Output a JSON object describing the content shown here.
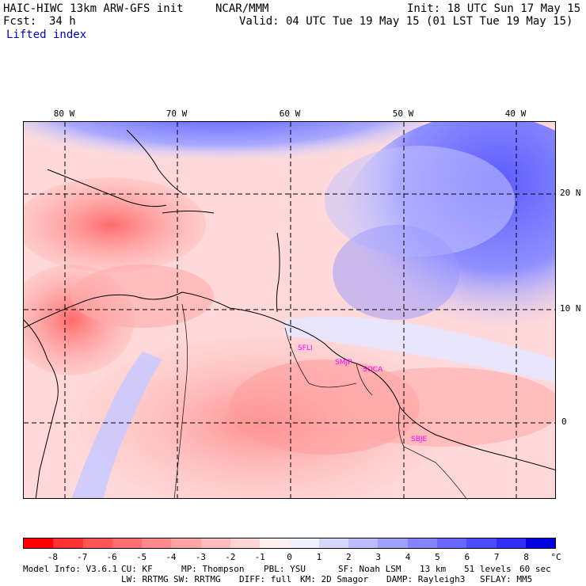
{
  "header": {
    "model": "HAIC-HIWC 13km ARW-GFS init",
    "org": "NCAR/MMM",
    "init": "Init: 18 UTC Sun 17 May 15",
    "fcst_label": "Fcst:",
    "fcst_value": "34 h",
    "valid": "Valid: 04 UTC Tue 19 May 15 (01 LST Tue 19 May 15)",
    "field": "Lifted index"
  },
  "map": {
    "lon_labels": [
      "80 W",
      "70 W",
      "60 W",
      "50 W",
      "40 W"
    ],
    "lat_labels": [
      "20 N",
      "10 N",
      "0"
    ],
    "stations": [
      "SFLI",
      "SMJP",
      "SOCA",
      "SBJE"
    ]
  },
  "colorbar": {
    "unit": "°C",
    "tick_labels": [
      "-8",
      "-7",
      "-6",
      "-5",
      "-4",
      "-3",
      "-2",
      "-1",
      "0",
      "1",
      "2",
      "3",
      "4",
      "5",
      "6",
      "7",
      "8"
    ],
    "colors": [
      "#ff0000",
      "#ff3333",
      "#ff5555",
      "#ff6f6f",
      "#ff8a8a",
      "#ffa4a4",
      "#ffbcbc",
      "#ffd6d6",
      "#fff0f0",
      "#f0f0ff",
      "#d6d6ff",
      "#bcbcff",
      "#a0a0ff",
      "#8484ff",
      "#6868ff",
      "#4c4cff",
      "#2f2ff5",
      "#0000e0"
    ]
  },
  "footer": {
    "line1": {
      "model_info": "Model Info: V3.6.1",
      "cu": "CU: KF",
      "mp": "MP: Thompson",
      "pbl": "PBL: YSU",
      "sf": "SF: Noah LSM",
      "res": "13 km",
      "levels": "51 levels",
      "dt": "60 sec"
    },
    "line2": {
      "lw": "LW: RRTMG",
      "sw": "SW: RRTMG",
      "diff": "DIFF: full",
      "km": "KM: 2D Smagor",
      "damp": "DAMP: Rayleigh3",
      "sflay": "SFLAY: MM5"
    }
  },
  "colors": {
    "grid": "#000000",
    "station_label": "#ff00ff",
    "field_text": "#0000cc"
  }
}
